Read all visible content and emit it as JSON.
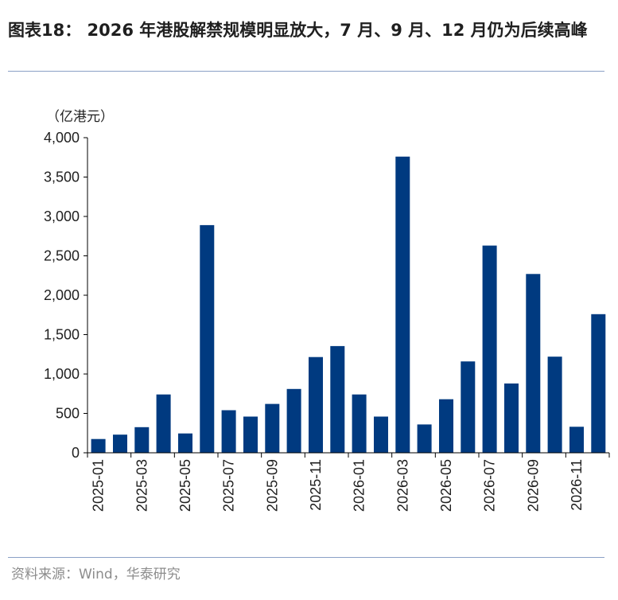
{
  "header": {
    "title": "图表18： 2026 年港股解禁规模明显放大，7 月、9 月、12 月仍为后续高峰"
  },
  "footer": {
    "source": "资料来源：Wind，华泰研究"
  },
  "chart_data": {
    "type": "bar",
    "title": "",
    "unit_label": "（亿港元）",
    "xlabel": "",
    "ylabel": "",
    "ylim": [
      0,
      4000
    ],
    "yticks": [
      0,
      500,
      1000,
      1500,
      2000,
      2500,
      3000,
      3500,
      4000
    ],
    "ytick_labels": [
      "0",
      "500",
      "1,000",
      "1,500",
      "2,000",
      "2,500",
      "3,000",
      "3,500",
      "4,000"
    ],
    "categories": [
      "2025-01",
      "2025-02",
      "2025-03",
      "2025-04",
      "2025-05",
      "2025-06",
      "2025-07",
      "2025-08",
      "2025-09",
      "2025-10",
      "2025-11",
      "2025-12",
      "2026-01",
      "2026-02",
      "2026-03",
      "2026-04",
      "2026-05",
      "2026-06",
      "2026-07",
      "2026-08",
      "2026-09",
      "2026-10",
      "2026-11",
      "2026-12"
    ],
    "xtick_labels": [
      "2025-01",
      "",
      "2025-03",
      "",
      "2025-05",
      "",
      "2025-07",
      "",
      "2025-09",
      "",
      "2025-11",
      "",
      "2026-01",
      "",
      "2026-03",
      "",
      "2026-05",
      "",
      "2026-07",
      "",
      "2026-09",
      "",
      "2026-11",
      ""
    ],
    "values": [
      175,
      230,
      325,
      740,
      245,
      2890,
      540,
      460,
      620,
      810,
      1215,
      1355,
      740,
      460,
      3760,
      360,
      680,
      1160,
      2630,
      880,
      2270,
      1220,
      330,
      1760
    ],
    "bar_color": "#003a80",
    "grid": false,
    "legend": "none"
  }
}
